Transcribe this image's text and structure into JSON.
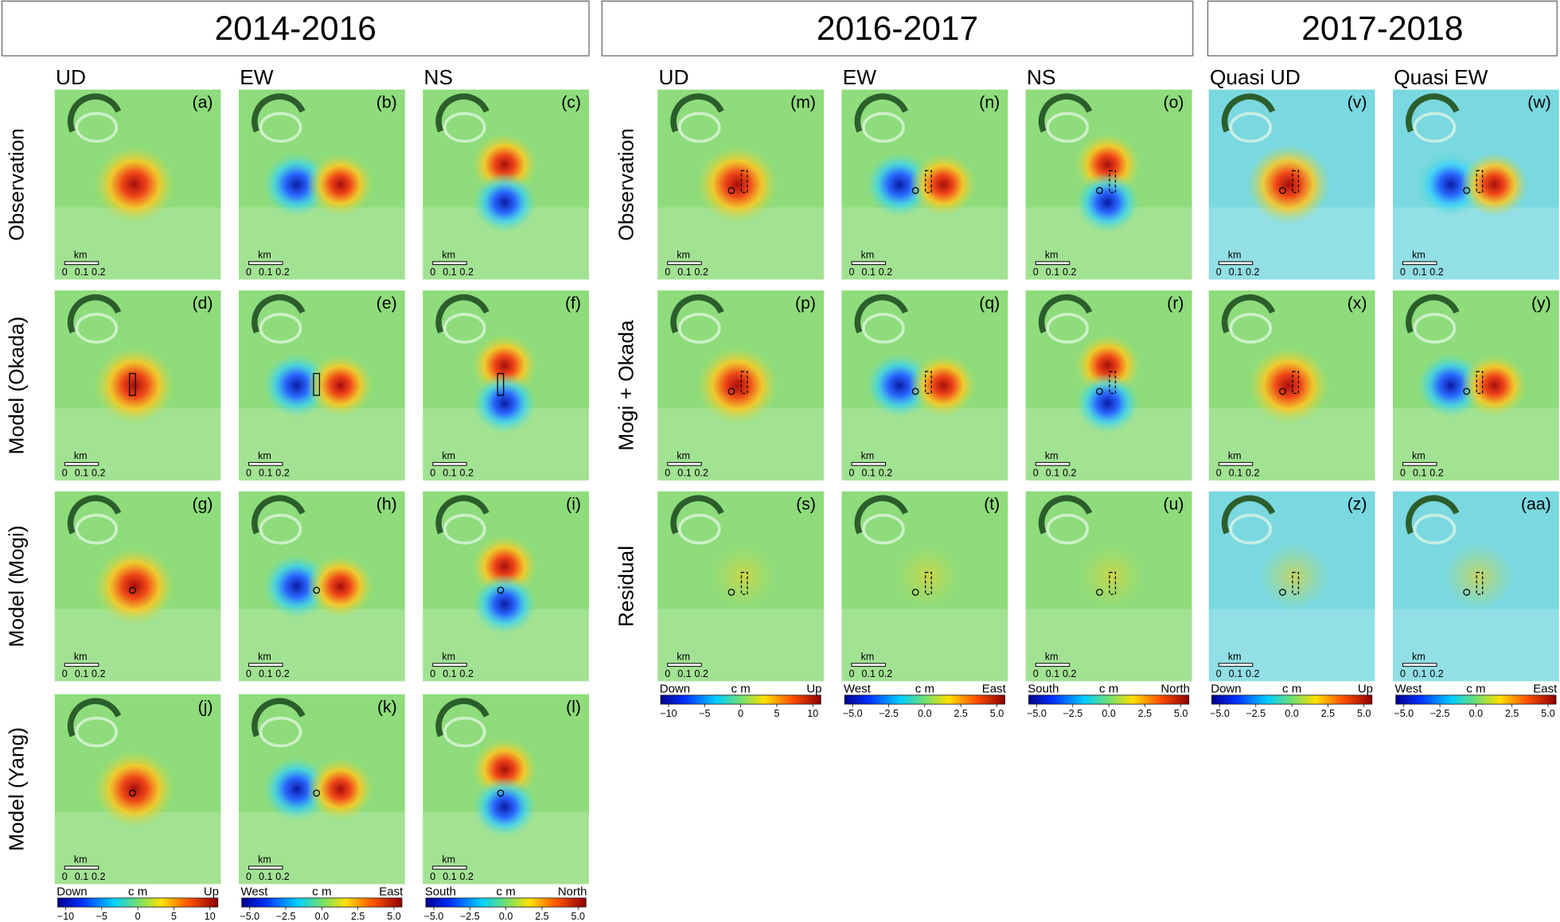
{
  "headers": [
    "2014-2016",
    "2016-2017",
    "2017-2018"
  ],
  "column_labels": [
    "UD",
    "EW",
    "NS",
    "UD",
    "EW",
    "NS",
    "Quasi UD",
    "Quasi EW"
  ],
  "row_labels_left": [
    "Observation",
    "Model (Okada)",
    "Model (Mogi)",
    "Model (Yang)"
  ],
  "row_labels_right": [
    "Observation",
    "Mogi + Okada",
    "Residual"
  ],
  "panels_left": [
    "(a)",
    "(b)",
    "(c)",
    "(d)",
    "(e)",
    "(f)",
    "(g)",
    "(h)",
    "(i)",
    "(j)",
    "(k)",
    "(l)"
  ],
  "panels_right": [
    "(m)",
    "(n)",
    "(o)",
    "(v)",
    "(w)",
    "(p)",
    "(q)",
    "(r)",
    "(x)",
    "(y)",
    "(s)",
    "(t)",
    "(u)",
    "(z)",
    "(aa)"
  ],
  "scale_bar": {
    "unit": "km",
    "ticks": [
      "0",
      "0.1",
      "0.2"
    ]
  },
  "colorbars_left": [
    {
      "left": "Down",
      "unit": "c m",
      "right": "Up",
      "ticks": [
        "−10",
        "−5",
        "0",
        "5",
        "10"
      ]
    },
    {
      "left": "West",
      "unit": "c m",
      "right": "East",
      "ticks": [
        "−5.0",
        "−2.5",
        "0.0",
        "2.5",
        "5.0"
      ]
    },
    {
      "left": "South",
      "unit": "c m",
      "right": "North",
      "ticks": [
        "−5.0",
        "−2.5",
        "0.0",
        "2.5",
        "5.0"
      ]
    }
  ],
  "colorbars_right": [
    {
      "left": "Down",
      "unit": "c m",
      "right": "Up",
      "ticks": [
        "−10",
        "−5",
        "0",
        "5",
        "10"
      ]
    },
    {
      "left": "West",
      "unit": "c m",
      "right": "East",
      "ticks": [
        "−5.0",
        "−2.5",
        "0.0",
        "2.5",
        "5.0"
      ]
    },
    {
      "left": "South",
      "unit": "c m",
      "right": "North",
      "ticks": [
        "−5.0",
        "−2.5",
        "0.0",
        "2.5",
        "5.0"
      ]
    },
    {
      "left": "Down",
      "unit": "c m",
      "right": "Up",
      "ticks": [
        "−5.0",
        "−2.5",
        "0.0",
        "2.5",
        "5.0"
      ]
    },
    {
      "left": "West",
      "unit": "c m",
      "right": "East",
      "ticks": [
        "−5.0",
        "−2.5",
        "0.0",
        "2.5",
        "5.0"
      ]
    }
  ]
}
